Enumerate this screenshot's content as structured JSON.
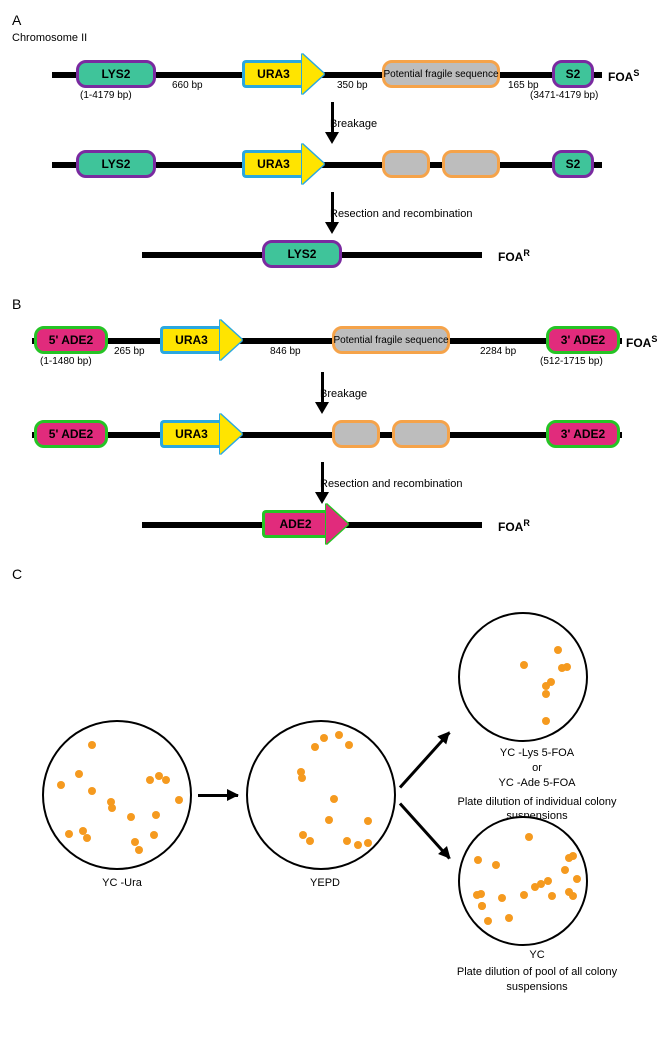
{
  "panelA": {
    "label": "A",
    "chromLabel": "Chromosome II",
    "foa_s": "FOA",
    "foa_s_sup": "S",
    "foa_r": "FOA",
    "foa_r_sup": "R",
    "lys2": {
      "text": "LYS2",
      "fill": "#3fc49a",
      "border": "#7a2aa0",
      "coord": "(1-4179 bp)"
    },
    "s2": {
      "text": "S2",
      "fill": "#3fc49a",
      "border": "#7a2aa0",
      "coord": "(3471-4179 bp)"
    },
    "ura3": {
      "text": "URA3",
      "fill": "#ffe400",
      "border": "#2aa8e0"
    },
    "fragile": {
      "text": "Potential  fragile sequence",
      "fill": "#bdbdbd",
      "border": "#f5a34a"
    },
    "gap1": "660 bp",
    "gap2": "350 bp",
    "gap3": "165 bp",
    "step1": "Breakage",
    "step2": "Resection and recombination"
  },
  "panelB": {
    "label": "B",
    "foa_s": "FOA",
    "foa_s_sup": "S",
    "foa_r": "FOA",
    "foa_r_sup": "R",
    "ade5": {
      "text": "5' ADE2",
      "fill": "#e12b7c",
      "border": "#25c425",
      "coord": "(1-1480 bp)"
    },
    "ade3": {
      "text": "3' ADE2",
      "fill": "#e12b7c",
      "border": "#25c425",
      "coord": "(512-1715 bp)"
    },
    "adeFull": {
      "text": "ADE2",
      "fill": "#e12b7c",
      "border": "#25c425"
    },
    "ura3": {
      "text": "URA3",
      "fill": "#ffe400",
      "border": "#2aa8e0"
    },
    "fragile": {
      "text": "Potential  fragile sequence",
      "fill": "#bdbdbd",
      "border": "#f5a34a"
    },
    "gap1": "265 bp",
    "gap2": "846 bp",
    "gap3": "2284 bp",
    "step1": "Breakage",
    "step2": "Resection and recombination"
  },
  "panelC": {
    "label": "C",
    "colonyColor": "#f59a1f",
    "plate1": {
      "label": "YC -Ura",
      "n": 18
    },
    "plate2": {
      "label": "YEPD",
      "n": 14
    },
    "plate3": {
      "label1": "YC -Lys 5-FOA",
      "label_or": "or",
      "label2": "YC -Ade 5-FOA",
      "desc": "Plate dilution of individual colony suspensions",
      "n": 8
    },
    "plate4": {
      "label": "YC",
      "desc": "Plate dilution of pool of all colony suspensions",
      "n": 21
    }
  }
}
